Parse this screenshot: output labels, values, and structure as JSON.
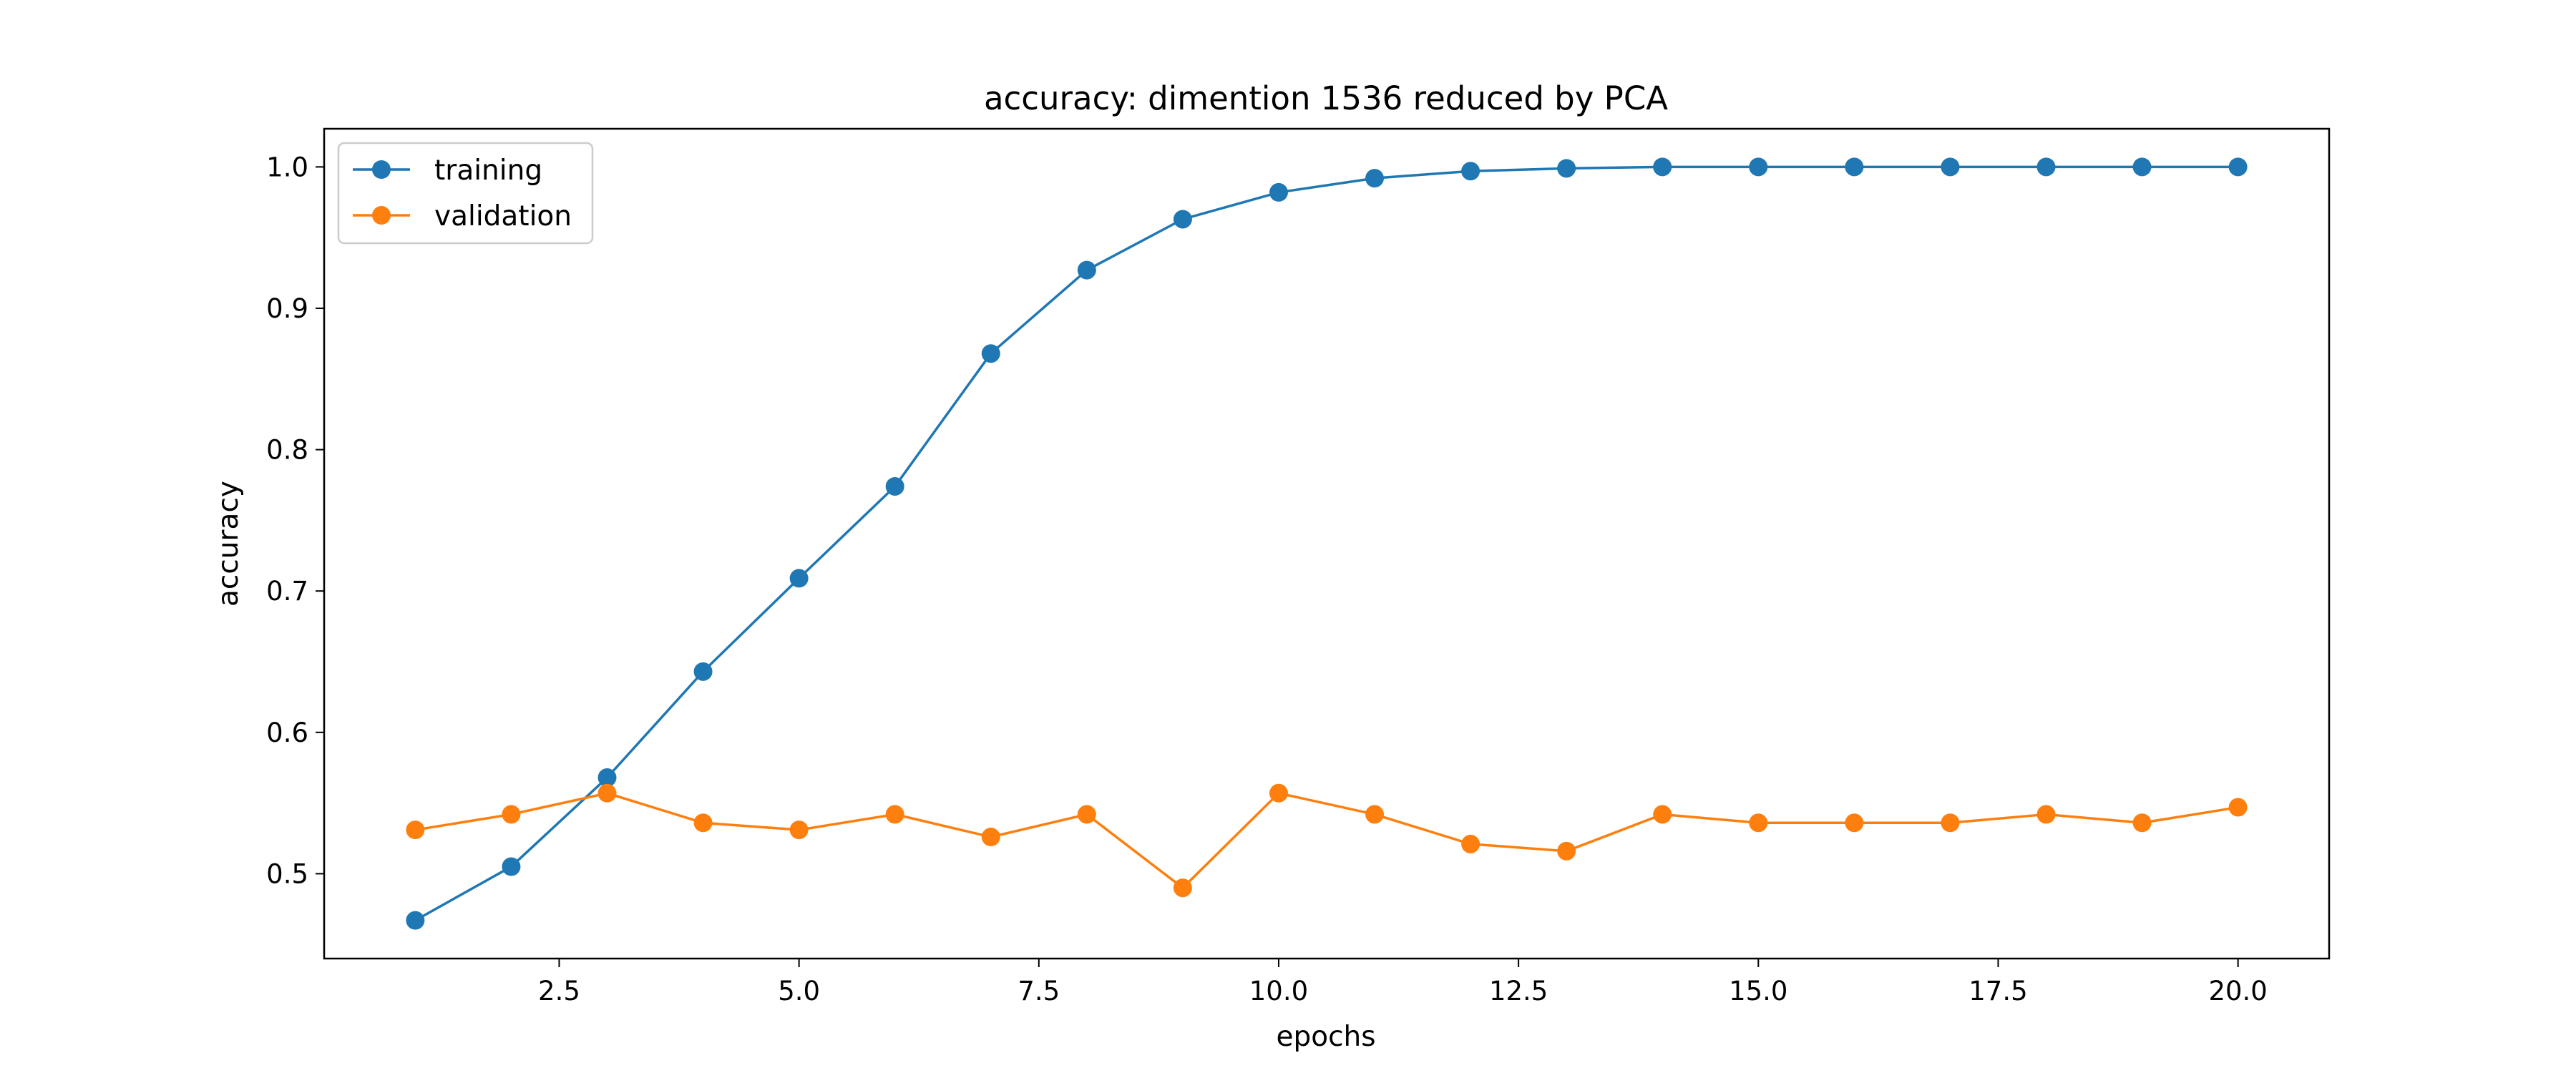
{
  "chart_data": {
    "type": "line",
    "title": "accuracy: dimention 1536 reduced by PCA",
    "xlabel": "epochs",
    "ylabel": "accuracy",
    "xlim": [
      0.05,
      20.95
    ],
    "ylim": [
      0.44,
      1.027
    ],
    "xticks": [
      2.5,
      5.0,
      7.5,
      10.0,
      12.5,
      15.0,
      17.5,
      20.0
    ],
    "xtick_labels": [
      "2.5",
      "5.0",
      "7.5",
      "10.0",
      "12.5",
      "15.0",
      "17.5",
      "20.0"
    ],
    "yticks": [
      0.5,
      0.6,
      0.7,
      0.8,
      0.9,
      1.0
    ],
    "ytick_labels": [
      "0.5",
      "0.6",
      "0.7",
      "0.8",
      "0.9",
      "1.0"
    ],
    "grid": false,
    "legend_position": "top-left",
    "x": [
      1,
      2,
      3,
      4,
      5,
      6,
      7,
      8,
      9,
      10,
      11,
      12,
      13,
      14,
      15,
      16,
      17,
      18,
      19,
      20
    ],
    "series": [
      {
        "name": "training",
        "color": "#1f77b4",
        "marker": "circle",
        "values": [
          0.467,
          0.505,
          0.568,
          0.643,
          0.709,
          0.774,
          0.868,
          0.927,
          0.963,
          0.982,
          0.992,
          0.997,
          0.999,
          1.0,
          1.0,
          1.0,
          1.0,
          1.0,
          1.0,
          1.0
        ]
      },
      {
        "name": "validation",
        "color": "#ff7f0e",
        "marker": "circle",
        "values": [
          0.531,
          0.542,
          0.557,
          0.536,
          0.531,
          0.542,
          0.526,
          0.542,
          0.49,
          0.557,
          0.542,
          0.521,
          0.516,
          0.542,
          0.536,
          0.536,
          0.536,
          0.542,
          0.536,
          0.547
        ]
      }
    ]
  }
}
